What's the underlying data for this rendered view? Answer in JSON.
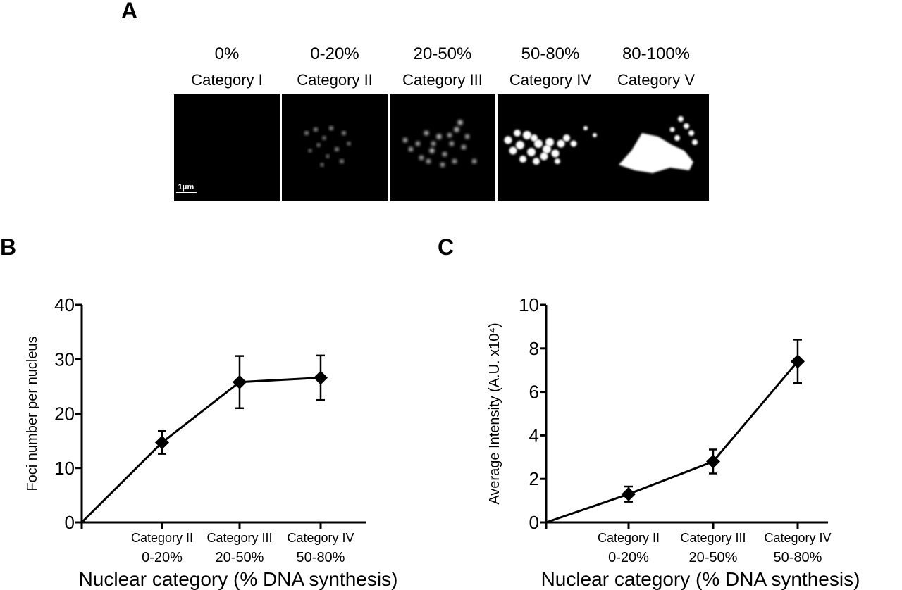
{
  "panels": {
    "a": "A",
    "b": "B",
    "c": "C"
  },
  "micrographs": [
    {
      "pct": "0%",
      "category": "Category I"
    },
    {
      "pct": "0-20%",
      "category": "Category II"
    },
    {
      "pct": "20-50%",
      "category": "Category III"
    },
    {
      "pct": "50-80%",
      "category": "Category IV"
    },
    {
      "pct": "80-100%",
      "category": "Category V"
    }
  ],
  "scale_bar_label": "1μm",
  "chart_data": [
    {
      "panel": "B",
      "type": "line",
      "x": [
        0,
        1,
        2,
        3
      ],
      "categories": [
        {
          "name": "Category II",
          "range": "0-20%"
        },
        {
          "name": "Category III",
          "range": "20-50%"
        },
        {
          "name": "Category IV",
          "range": "50-80%"
        }
      ],
      "values": [
        0,
        14.7,
        25.8,
        26.6
      ],
      "error": [
        null,
        2.1,
        4.8,
        4.1
      ],
      "xlabel": "Nuclear category (% DNA synthesis)",
      "ylabel": "Foci number per nucleus",
      "ylim": [
        0,
        40
      ],
      "yticks": [
        0,
        10,
        20,
        30,
        40
      ],
      "marker": "diamond",
      "grid": false
    },
    {
      "panel": "C",
      "type": "line",
      "x": [
        0,
        1,
        2,
        3
      ],
      "categories": [
        {
          "name": "Category II",
          "range": "0-20%"
        },
        {
          "name": "Category III",
          "range": "20-50%"
        },
        {
          "name": "Category IV",
          "range": "50-80%"
        }
      ],
      "values": [
        0,
        1.3,
        2.8,
        7.4
      ],
      "error": [
        null,
        0.35,
        0.55,
        1.0
      ],
      "xlabel": "Nuclear category (% DNA synthesis)",
      "ylabel": "Average Intensity (A.U. x10⁴)",
      "ylim": [
        0,
        10
      ],
      "yticks": [
        0,
        2,
        4,
        6,
        8,
        10
      ],
      "marker": "diamond",
      "grid": false
    }
  ]
}
